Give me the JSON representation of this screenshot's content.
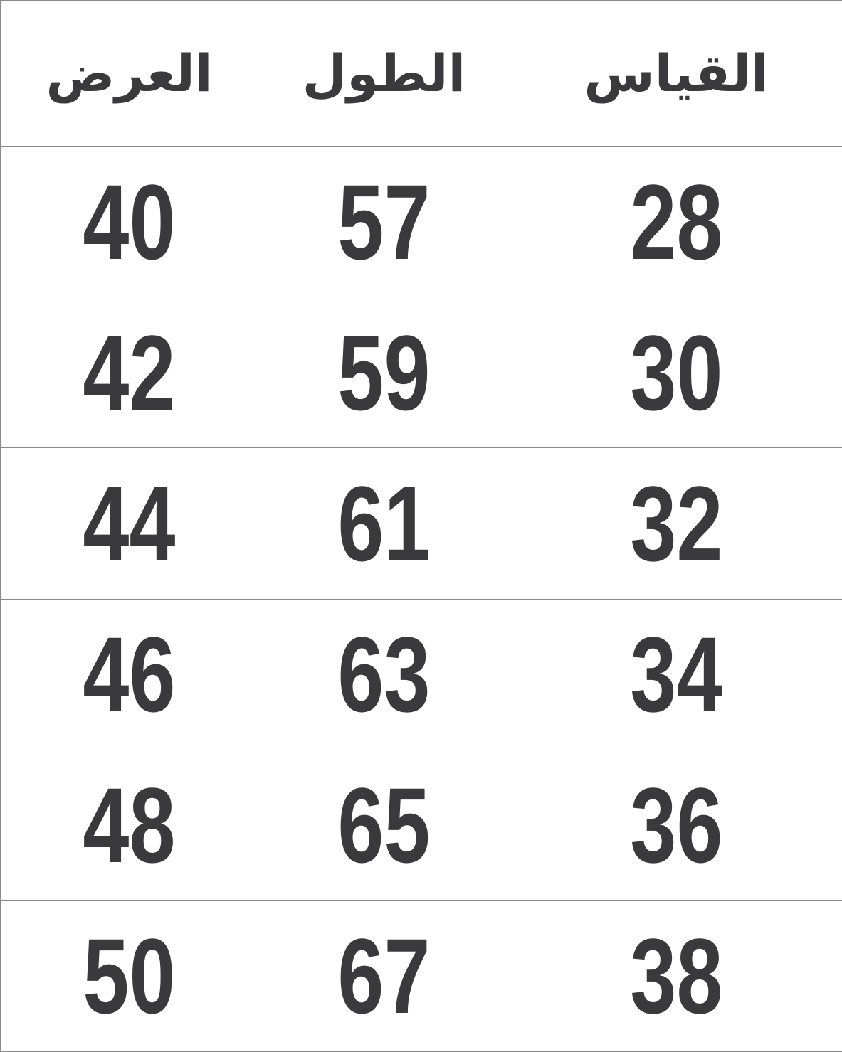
{
  "table": {
    "headers": [
      "العرض",
      "الطول",
      "القياس"
    ],
    "rows": [
      [
        "40",
        "57",
        "28"
      ],
      [
        "42",
        "59",
        "30"
      ],
      [
        "44",
        "61",
        "32"
      ],
      [
        "46",
        "63",
        "34"
      ],
      [
        "48",
        "65",
        "36"
      ],
      [
        "50",
        "67",
        "38"
      ]
    ]
  }
}
